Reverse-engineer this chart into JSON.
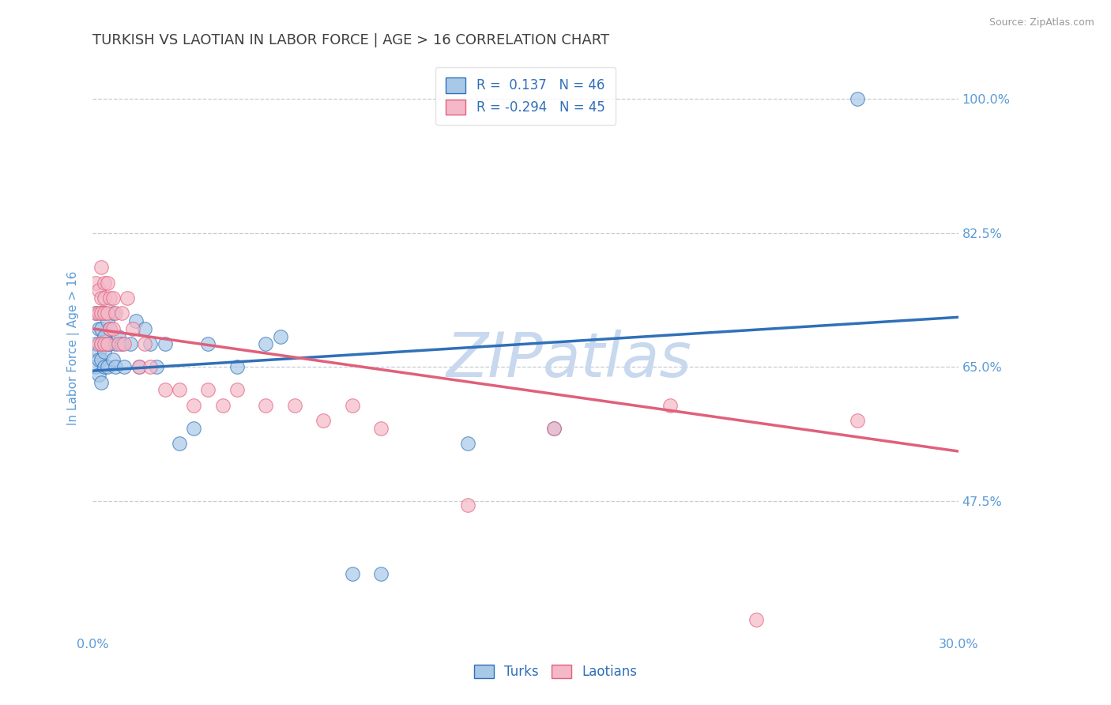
{
  "title": "TURKISH VS LAOTIAN IN LABOR FORCE | AGE > 16 CORRELATION CHART",
  "source_text": "Source: ZipAtlas.com",
  "ylabel": "In Labor Force | Age > 16",
  "xlim": [
    0.0,
    0.3
  ],
  "ylim": [
    0.3,
    1.05
  ],
  "yticks": [
    0.475,
    0.65,
    0.825,
    1.0
  ],
  "ytick_labels": [
    "47.5%",
    "65.0%",
    "82.5%",
    "100.0%"
  ],
  "xticks": [
    0.0,
    0.05,
    0.1,
    0.15,
    0.2,
    0.25,
    0.3
  ],
  "xtick_labels": [
    "0.0%",
    "",
    "",
    "",
    "",
    "",
    "30.0%"
  ],
  "turks_R": 0.137,
  "turks_N": 46,
  "laotians_R": -0.294,
  "laotians_N": 45,
  "turk_color": "#a8c8e8",
  "laotian_color": "#f4b8c8",
  "turk_line_color": "#3070b8",
  "laotian_line_color": "#e0607a",
  "background_color": "#ffffff",
  "grid_color": "#c0c8d0",
  "title_color": "#404040",
  "axis_label_color": "#5b9bd5",
  "tick_label_color": "#5b9bd5",
  "turks_x": [
    0.001,
    0.001,
    0.001,
    0.002,
    0.002,
    0.002,
    0.002,
    0.003,
    0.003,
    0.003,
    0.003,
    0.003,
    0.004,
    0.004,
    0.004,
    0.004,
    0.005,
    0.005,
    0.005,
    0.006,
    0.006,
    0.007,
    0.007,
    0.008,
    0.008,
    0.009,
    0.01,
    0.011,
    0.013,
    0.015,
    0.016,
    0.018,
    0.02,
    0.022,
    0.025,
    0.03,
    0.035,
    0.04,
    0.05,
    0.06,
    0.065,
    0.09,
    0.1,
    0.13,
    0.16,
    0.265
  ],
  "turks_y": [
    0.72,
    0.68,
    0.65,
    0.7,
    0.67,
    0.64,
    0.66,
    0.68,
    0.72,
    0.66,
    0.63,
    0.7,
    0.69,
    0.65,
    0.72,
    0.67,
    0.68,
    0.71,
    0.65,
    0.7,
    0.68,
    0.72,
    0.66,
    0.68,
    0.65,
    0.69,
    0.68,
    0.65,
    0.68,
    0.71,
    0.65,
    0.7,
    0.68,
    0.65,
    0.68,
    0.55,
    0.57,
    0.68,
    0.65,
    0.68,
    0.69,
    0.38,
    0.38,
    0.55,
    0.57,
    1.0
  ],
  "laotians_x": [
    0.001,
    0.001,
    0.002,
    0.002,
    0.002,
    0.003,
    0.003,
    0.003,
    0.003,
    0.004,
    0.004,
    0.004,
    0.004,
    0.005,
    0.005,
    0.005,
    0.006,
    0.006,
    0.007,
    0.007,
    0.008,
    0.009,
    0.01,
    0.011,
    0.012,
    0.014,
    0.016,
    0.018,
    0.02,
    0.025,
    0.03,
    0.035,
    0.04,
    0.045,
    0.05,
    0.06,
    0.07,
    0.08,
    0.09,
    0.1,
    0.13,
    0.16,
    0.2,
    0.23,
    0.265
  ],
  "laotians_y": [
    0.72,
    0.76,
    0.75,
    0.72,
    0.68,
    0.74,
    0.78,
    0.72,
    0.68,
    0.76,
    0.72,
    0.68,
    0.74,
    0.72,
    0.76,
    0.68,
    0.74,
    0.7,
    0.74,
    0.7,
    0.72,
    0.68,
    0.72,
    0.68,
    0.74,
    0.7,
    0.65,
    0.68,
    0.65,
    0.62,
    0.62,
    0.6,
    0.62,
    0.6,
    0.62,
    0.6,
    0.6,
    0.58,
    0.6,
    0.57,
    0.47,
    0.57,
    0.6,
    0.32,
    0.58
  ],
  "turk_trend_x": [
    0.0,
    0.3
  ],
  "turk_trend_y": [
    0.645,
    0.715
  ],
  "laotian_trend_x": [
    0.0,
    0.3
  ],
  "laotian_trend_y": [
    0.7,
    0.54
  ],
  "watermark": "ZIPatlas",
  "watermark_color": "#c8d8ee",
  "title_fontsize": 13,
  "axis_label_fontsize": 11,
  "tick_fontsize": 11.5,
  "legend_fontsize": 12,
  "marker_size": 160
}
